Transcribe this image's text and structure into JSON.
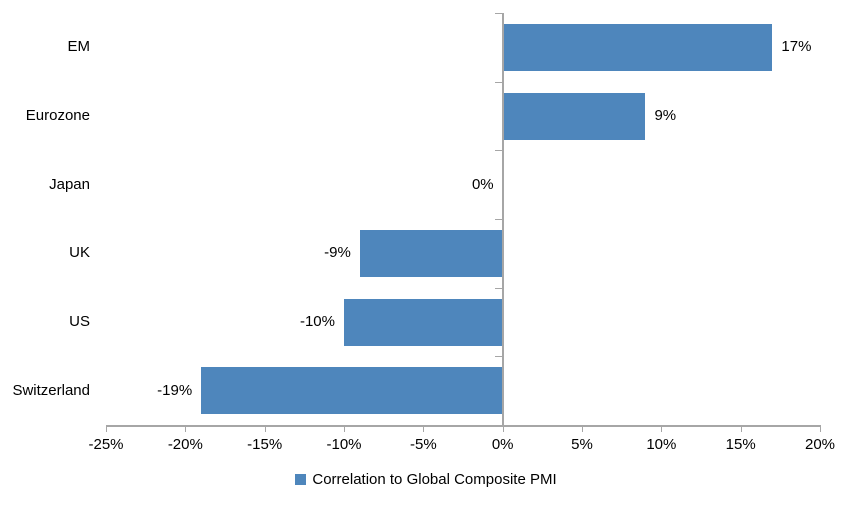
{
  "chart_data": {
    "type": "bar",
    "orientation": "horizontal",
    "title": "",
    "categories": [
      "EM",
      "Eurozone",
      "Japan",
      "UK",
      "US",
      "Switzerland"
    ],
    "values": [
      17,
      9,
      0,
      -9,
      -10,
      -19
    ],
    "data_labels": [
      "17%",
      "9%",
      "0%",
      "-9%",
      "-10%",
      "-19%"
    ],
    "x_ticks": [
      -25,
      -20,
      -15,
      -10,
      -5,
      0,
      5,
      10,
      15,
      20
    ],
    "x_tick_labels": [
      "-25%",
      "-20%",
      "-15%",
      "-10%",
      "-5%",
      "0%",
      "5%",
      "10%",
      "15%",
      "20%"
    ],
    "xlim": [
      -25,
      20
    ],
    "xlabel": "",
    "ylabel": "",
    "grid": false,
    "legend": "Correlation to Global Composite PMI",
    "legend_position": "bottom-center",
    "bar_color": "#4E86BC",
    "axis_color": "#A6A6A6",
    "text_color": "#000000"
  }
}
